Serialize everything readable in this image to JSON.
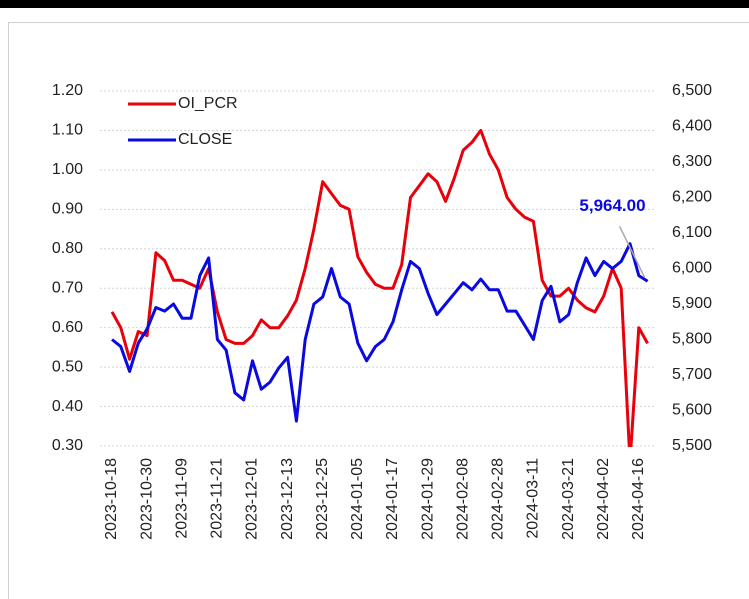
{
  "chart_data": {
    "type": "line",
    "categories": [
      "2023-10-18",
      null,
      null,
      null,
      "2023-10-30",
      null,
      null,
      null,
      "2023-11-09",
      null,
      null,
      null,
      "2023-11-21",
      null,
      null,
      null,
      "2023-12-01",
      null,
      null,
      null,
      "2023-12-13",
      null,
      null,
      null,
      "2023-12-25",
      null,
      null,
      null,
      "2024-01-05",
      null,
      null,
      null,
      "2024-01-17",
      null,
      null,
      null,
      "2024-01-29",
      null,
      null,
      null,
      "2024-02-08",
      null,
      null,
      null,
      "2024-02-28",
      null,
      null,
      null,
      "2024-03-11",
      null,
      null,
      null,
      "2024-03-21",
      null,
      null,
      null,
      "2024-04-02",
      null,
      null,
      null,
      "2024-04-16",
      null
    ],
    "series": [
      {
        "name": "OI_PCR",
        "color": "#e8000b",
        "axis": "y",
        "values": [
          0.64,
          0.6,
          0.52,
          0.59,
          0.58,
          0.79,
          0.77,
          0.72,
          0.72,
          0.71,
          0.7,
          0.75,
          0.64,
          0.57,
          0.56,
          0.56,
          0.58,
          0.62,
          0.6,
          0.6,
          0.63,
          0.67,
          0.75,
          0.85,
          0.97,
          0.94,
          0.91,
          0.9,
          0.78,
          0.74,
          0.71,
          0.7,
          0.7,
          0.76,
          0.93,
          0.96,
          0.99,
          0.97,
          0.92,
          0.98,
          1.05,
          1.07,
          1.1,
          1.04,
          1.0,
          0.93,
          0.9,
          0.88,
          0.87,
          0.72,
          0.68,
          0.68,
          0.7,
          0.67,
          0.65,
          0.64,
          0.68,
          0.75,
          0.7,
          0.26,
          0.6,
          0.56
        ]
      },
      {
        "name": "CLOSE",
        "color": "#0a0ae0",
        "axis": "y2",
        "values": [
          5800,
          5780,
          5710,
          5790,
          5830,
          5890,
          5880,
          5900,
          5860,
          5860,
          5980,
          6030,
          5800,
          5770,
          5650,
          5630,
          5740,
          5660,
          5680,
          5720,
          5750,
          5570,
          5800,
          5900,
          5920,
          6000,
          5920,
          5900,
          5790,
          5740,
          5780,
          5800,
          5850,
          5940,
          6020,
          6000,
          5930,
          5870,
          5900,
          5930,
          5960,
          5940,
          5970,
          5940,
          5940,
          5880,
          5880,
          5840,
          5800,
          5910,
          5950,
          5850,
          5870,
          5960,
          6030,
          5980,
          6020,
          6000,
          6020,
          6070,
          5980,
          5964
        ],
        "value_labels": [
          null,
          null,
          null,
          null,
          null,
          null,
          null,
          null,
          null,
          null,
          null,
          null,
          null,
          null,
          null,
          null,
          null,
          null,
          null,
          null,
          null,
          null,
          null,
          null,
          null,
          null,
          null,
          null,
          null,
          null,
          null,
          null,
          null,
          null,
          null,
          null,
          null,
          null,
          null,
          null,
          null,
          null,
          null,
          null,
          null,
          null,
          null,
          null,
          null,
          null,
          null,
          null,
          null,
          null,
          null,
          null,
          null,
          null,
          null,
          null,
          null,
          "5,964.00"
        ]
      }
    ],
    "ylim": [
      0.3,
      1.2
    ],
    "yticks": [
      {
        "value": 0.3,
        "label": "0.30"
      },
      {
        "value": 0.4,
        "label": "0.40"
      },
      {
        "value": 0.5,
        "label": "0.50"
      },
      {
        "value": 0.6,
        "label": "0.60"
      },
      {
        "value": 0.7,
        "label": "0.70"
      },
      {
        "value": 0.8,
        "label": "0.80"
      },
      {
        "value": 0.9,
        "label": "0.90"
      },
      {
        "value": 1.0,
        "label": "1.00"
      },
      {
        "value": 1.1,
        "label": "1.10"
      },
      {
        "value": 1.2,
        "label": "1.20"
      }
    ],
    "y2lim": [
      5500,
      6500
    ],
    "y2ticks": [
      {
        "value": 5500,
        "label": "5,500"
      },
      {
        "value": 5600,
        "label": "5,600"
      },
      {
        "value": 5700,
        "label": "5,700"
      },
      {
        "value": 5800,
        "label": "5,800"
      },
      {
        "value": 5900,
        "label": "5,900"
      },
      {
        "value": 6000,
        "label": "6,000"
      },
      {
        "value": 6100,
        "label": "6,100"
      },
      {
        "value": 6200,
        "label": "6,200"
      },
      {
        "value": 6300,
        "label": "6,300"
      },
      {
        "value": 6400,
        "label": "6,400"
      },
      {
        "value": 6500,
        "label": "6,500"
      }
    ],
    "grid": true,
    "legend": "top-left"
  }
}
